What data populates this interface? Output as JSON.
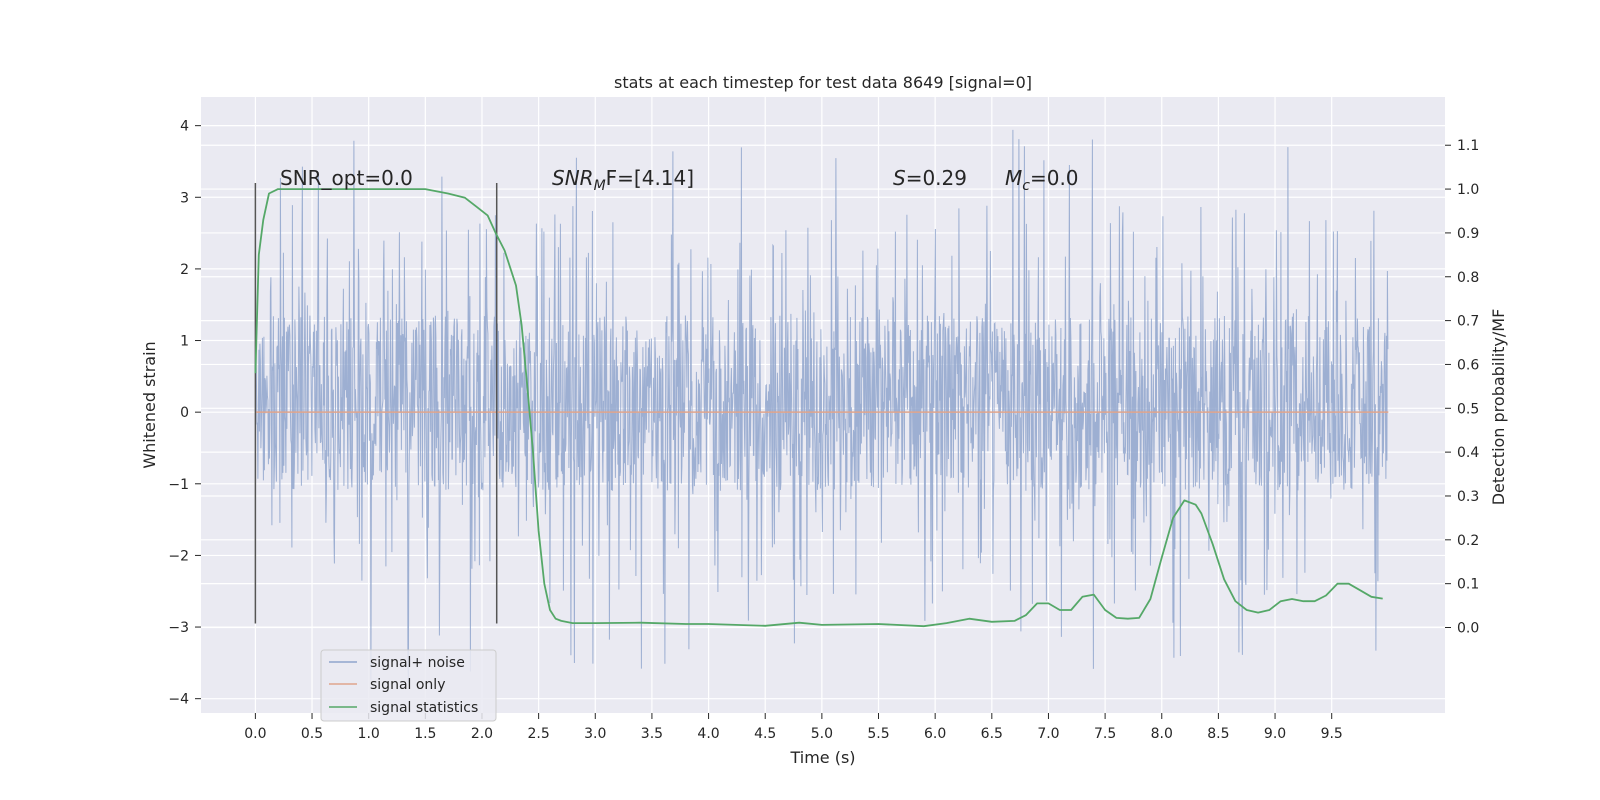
{
  "chart_data": {
    "type": "line",
    "title": "stats at each timestep for test data 8649 [signal=0]",
    "xlabel": "Time (s)",
    "ylabel": "Whitened strain",
    "y2label": "Detection probability/MF",
    "xlim": [
      -0.48,
      10.5
    ],
    "ylim": [
      -4.2,
      4.4
    ],
    "y2lim": [
      -0.195,
      1.21
    ],
    "xticks": [
      "0.0",
      "0.5",
      "1.0",
      "1.5",
      "2.0",
      "2.5",
      "3.0",
      "3.5",
      "4.0",
      "4.5",
      "5.0",
      "5.5",
      "6.0",
      "6.5",
      "7.0",
      "7.5",
      "8.0",
      "8.5",
      "9.0",
      "9.5"
    ],
    "yticks": [
      "−4",
      "−3",
      "−2",
      "−1",
      "0",
      "1",
      "2",
      "3",
      "4"
    ],
    "y2ticks": [
      "0.0",
      "0.1",
      "0.2",
      "0.3",
      "0.4",
      "0.5",
      "0.6",
      "0.7",
      "0.8",
      "0.9",
      "1.0",
      "1.1"
    ],
    "grid": true,
    "legend_placement": "lower-left",
    "colors": {
      "noise": "#8fa5cc",
      "signal_only": "#e0a58c",
      "statistics": "#55a868",
      "vline": "#555555",
      "background": "#eaeaf2"
    },
    "annotations": [
      {
        "text": "SNR_opt=0.0",
        "x": 0.2
      },
      {
        "italic": "SNR",
        "sub": "M",
        "rest": "F=[4.14]",
        "x": 2.6
      },
      {
        "italic": "S",
        "rest": "=0.29",
        "x": 5.6
      },
      {
        "italic": "M",
        "sub": "c",
        "rest": "=0.0",
        "x": 6.6
      }
    ],
    "vlines": [
      {
        "x": 0.0,
        "ymin": -2.95,
        "ymax": 3.2
      },
      {
        "x": 2.13,
        "ymin": -2.95,
        "ymax": 3.2
      }
    ],
    "series": [
      {
        "name": "signal+ noise",
        "x_range": [
          0.0,
          10.0
        ],
        "core_band": [
          -1.1,
          1.35
        ],
        "spike_range": [
          -3.8,
          4.05
        ]
      },
      {
        "name": "signal only",
        "x": [
          0.0,
          10.0
        ],
        "y": [
          0.0,
          0.0
        ]
      },
      {
        "name": "signal statistics",
        "axis": "right",
        "x": [
          0.0,
          0.03,
          0.07,
          0.12,
          0.2,
          0.3,
          0.5,
          1.0,
          1.5,
          1.7,
          1.85,
          1.95,
          2.05,
          2.12,
          2.2,
          2.3,
          2.35,
          2.4,
          2.45,
          2.5,
          2.55,
          2.6,
          2.65,
          2.7,
          2.8,
          3.0,
          3.4,
          3.8,
          4.0,
          4.5,
          4.8,
          5.0,
          5.5,
          5.9,
          6.1,
          6.3,
          6.5,
          6.7,
          6.8,
          6.9,
          7.0,
          7.1,
          7.2,
          7.3,
          7.4,
          7.5,
          7.6,
          7.7,
          7.8,
          7.9,
          8.0,
          8.1,
          8.2,
          8.3,
          8.35,
          8.45,
          8.55,
          8.65,
          8.75,
          8.85,
          8.95,
          9.05,
          9.15,
          9.25,
          9.35,
          9.45,
          9.55,
          9.65,
          9.75,
          9.85,
          9.95
        ],
        "y": [
          0.58,
          0.85,
          0.93,
          0.99,
          1.0,
          1.0,
          1.0,
          1.0,
          1.0,
          0.99,
          0.98,
          0.96,
          0.94,
          0.9,
          0.86,
          0.78,
          0.69,
          0.55,
          0.4,
          0.22,
          0.1,
          0.04,
          0.02,
          0.015,
          0.01,
          0.01,
          0.011,
          0.008,
          0.008,
          0.004,
          0.011,
          0.006,
          0.008,
          0.003,
          0.01,
          0.02,
          0.013,
          0.015,
          0.028,
          0.055,
          0.055,
          0.04,
          0.04,
          0.07,
          0.075,
          0.04,
          0.022,
          0.02,
          0.022,
          0.065,
          0.16,
          0.25,
          0.29,
          0.28,
          0.26,
          0.19,
          0.11,
          0.06,
          0.04,
          0.034,
          0.04,
          0.06,
          0.065,
          0.06,
          0.06,
          0.073,
          0.1,
          0.1,
          0.085,
          0.07,
          0.066
        ]
      }
    ]
  }
}
